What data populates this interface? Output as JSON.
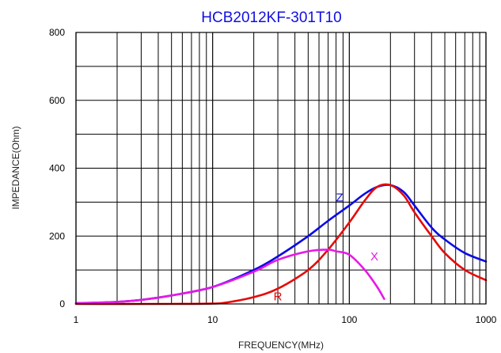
{
  "chart_data": {
    "type": "line",
    "title": "HCB2012KF-301T10",
    "xlabel": "FREQUENCY(MHz)",
    "ylabel": "IMPEDANCE(Ohm)",
    "x_scale": "log",
    "xlim": [
      1,
      1000
    ],
    "ylim": [
      0,
      800
    ],
    "x_ticks": [
      "1",
      "10",
      "100",
      "1000"
    ],
    "y_ticks": [
      "0",
      "200",
      "400",
      "600",
      "800"
    ],
    "grid": true,
    "colors": {
      "title": "#1010e0",
      "grid": "#000000"
    },
    "series": [
      {
        "name": "Z",
        "color": "#0a0ae6",
        "x": [
          1,
          2,
          3,
          5,
          10,
          20,
          30,
          50,
          70,
          100,
          130,
          160,
          200,
          250,
          300,
          400,
          500,
          700,
          1000
        ],
        "y": [
          2,
          6,
          12,
          25,
          50,
          100,
          140,
          200,
          245,
          290,
          325,
          345,
          350,
          330,
          290,
          225,
          190,
          150,
          125
        ]
      },
      {
        "name": "R",
        "color": "#e60a0a",
        "x": [
          1,
          5,
          10,
          13,
          20,
          30,
          50,
          70,
          100,
          130,
          160,
          200,
          250,
          300,
          400,
          500,
          700,
          1000
        ],
        "y": [
          0,
          0,
          1,
          5,
          20,
          45,
          100,
          160,
          240,
          305,
          345,
          350,
          320,
          270,
          200,
          150,
          100,
          70
        ]
      },
      {
        "name": "X",
        "color": "#e619e6",
        "x": [
          1,
          2,
          3,
          5,
          10,
          20,
          30,
          50,
          70,
          80,
          100,
          130,
          160,
          180
        ],
        "y": [
          2,
          6,
          12,
          25,
          50,
          95,
          130,
          155,
          160,
          155,
          145,
          100,
          50,
          15
        ]
      }
    ]
  }
}
